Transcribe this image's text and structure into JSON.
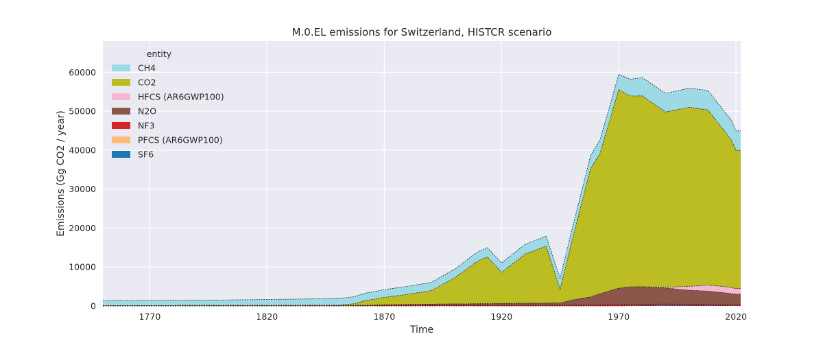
{
  "chart_data": {
    "type": "area",
    "title": "M.0.EL emissions for Switzerland, HISTCR scenario",
    "xlabel": "Time",
    "ylabel": "Emissions (Gg CO2 / year)",
    "xlim": [
      1750,
      2022
    ],
    "ylim": [
      0,
      68000
    ],
    "xticks": [
      1770,
      1820,
      1870,
      1920,
      1970,
      2020
    ],
    "yticks": [
      0,
      10000,
      20000,
      30000,
      40000,
      50000,
      60000
    ],
    "grid": true,
    "stacked": true,
    "legend": {
      "title": "entity",
      "placement": "top-left"
    },
    "x": [
      1750,
      1800,
      1830,
      1850,
      1857,
      1862,
      1870,
      1880,
      1890,
      1900,
      1910,
      1914,
      1920,
      1930,
      1939,
      1945,
      1950,
      1958,
      1962,
      1970,
      1975,
      1980,
      1990,
      2000,
      2008,
      2015,
      2018,
      2020,
      2022
    ],
    "series": [
      {
        "name": "SF6",
        "color": "#1f77b4",
        "values": [
          0,
          0,
          0,
          0,
          0,
          0,
          0,
          0,
          0,
          0,
          0,
          0,
          0,
          0,
          0,
          0,
          0,
          0,
          0,
          20,
          50,
          80,
          150,
          100,
          100,
          80,
          70,
          60,
          60
        ]
      },
      {
        "name": "PFCS (AR6GWP100)",
        "color": "#ffbb78",
        "values": [
          0,
          0,
          0,
          0,
          0,
          0,
          0,
          0,
          0,
          0,
          0,
          0,
          0,
          0,
          0,
          0,
          0,
          0,
          0,
          0,
          30,
          30,
          40,
          30,
          30,
          20,
          20,
          20,
          20
        ]
      },
      {
        "name": "NF3",
        "color": "#d62728",
        "values": [
          100,
          120,
          140,
          150,
          160,
          180,
          200,
          230,
          260,
          280,
          290,
          290,
          290,
          290,
          290,
          280,
          300,
          320,
          330,
          340,
          340,
          330,
          320,
          310,
          300,
          290,
          290,
          280,
          280
        ]
      },
      {
        "name": "N2O",
        "color": "#8c564b",
        "values": [
          0,
          0,
          0,
          0,
          0,
          0,
          100,
          150,
          200,
          250,
          300,
          300,
          350,
          400,
          450,
          500,
          1200,
          2000,
          2800,
          4200,
          4500,
          4500,
          4100,
          3600,
          3400,
          3000,
          2800,
          2700,
          2700
        ]
      },
      {
        "name": "HFCS (AR6GWP100)",
        "color": "#f7b6d2",
        "values": [
          0,
          0,
          0,
          0,
          0,
          0,
          0,
          0,
          0,
          0,
          0,
          0,
          0,
          0,
          0,
          0,
          0,
          0,
          0,
          0,
          0,
          0,
          200,
          1000,
          1500,
          1600,
          1500,
          1400,
          1400
        ]
      },
      {
        "name": "CO2",
        "color": "#bcbd22",
        "values": [
          0,
          0,
          0,
          0,
          400,
          1200,
          1900,
          2600,
          3500,
          6700,
          11000,
          12000,
          8000,
          12600,
          14600,
          3500,
          15000,
          33000,
          36000,
          51000,
          49000,
          49000,
          45000,
          46000,
          45000,
          40000,
          38000,
          35500,
          35500
        ]
      },
      {
        "name": "CH4",
        "color": "#9edae5",
        "values": [
          1300,
          1400,
          1600,
          1750,
          1800,
          1900,
          2000,
          2050,
          2100,
          2200,
          2400,
          2400,
          2400,
          2500,
          2600,
          2800,
          3000,
          3300,
          3500,
          3900,
          4300,
          4700,
          4800,
          4900,
          5000,
          5000,
          5000,
          5000,
          5000
        ]
      }
    ]
  }
}
